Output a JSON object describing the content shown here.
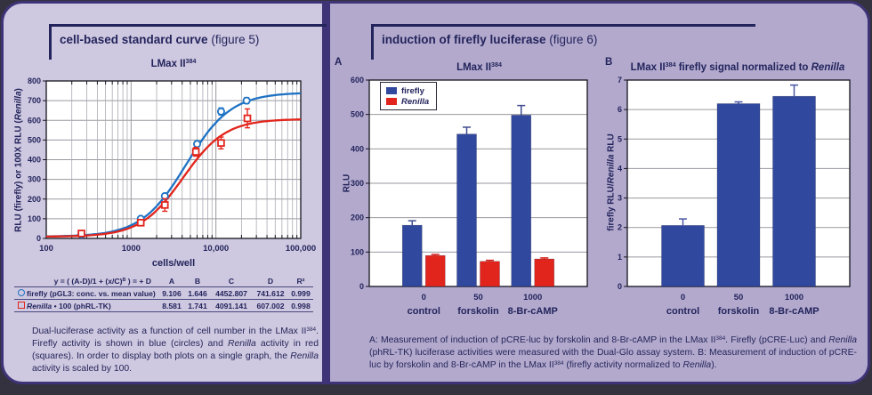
{
  "page": {
    "left_heading": {
      "title": "cell-based standard curve",
      "figure": "(figure 5)"
    },
    "right_heading": {
      "title": "induction of firefly luciferase",
      "figure": "(figure 6)"
    },
    "left_caption": "Dual-luciferase activity as a function of cell number in the LMax II^384^. Firefly activity is shown in blue (circles) and *Renilla* activity in red (squares). In order to display both plots on a single graph, the *Renilla* activity is scaled by 100.",
    "right_caption": "A: Measurement of induction of pCRE-luc by forskolin and 8-Br-cAMP in the LMax II^384^. Firefly (pCRE-Luc) and *Renilla* (phRL-TK) luciferase activities were measured with the Dual-Glo assay system. B: Measurement of induction of pCRE-luc by forskolin and 8-Br-cAMP in the LMax II^384^ (firefly activity normalized to *Renilla*).",
    "colors": {
      "left_panel_bg": "#cec8e0",
      "right_panel_bg": "#b2a9cd",
      "frame_indigo": "#3e3377",
      "text_navy": "#23245c",
      "firefly_line_blue": "#1e72c4",
      "firefly_bar_blue": "#30489e",
      "renilla_red": "#e2251c"
    }
  },
  "chart_data": [
    {
      "id": "standard-curve",
      "type": "scatter",
      "title": "LMax II^384^",
      "xlabel": "cells/well",
      "ylabel": "RLU (firefly) or 100X RLU (*Renilla*)",
      "x_scale": "log",
      "xlim": [
        100,
        100000
      ],
      "ylim": [
        0,
        800
      ],
      "y_tick_step": 100,
      "x_tick_values": [
        100,
        1000,
        10000,
        100000
      ],
      "x_tick_labels": [
        "100",
        "1000",
        "10,000",
        "100,000"
      ],
      "grid": true,
      "fit_formula": "y = ( (A-D)/1 + (x/C)^B^ ) = + D",
      "fit_table_headers": [
        "A",
        "B",
        "C",
        "D",
        "R²"
      ],
      "series": [
        {
          "name": "firefly (pGL3: conc. vs. mean value)",
          "marker": "circle",
          "color": "#1e72c4",
          "x": [
            260,
            1300,
            2500,
            6000,
            11500,
            23000
          ],
          "y": [
            20,
            100,
            215,
            480,
            645,
            700
          ],
          "yerr": [
            5,
            8,
            10,
            14,
            18,
            15
          ],
          "fit": {
            "A": "9.106",
            "B": "1.646",
            "C": "4452.807",
            "D": "741.612",
            "R2": "0.999"
          }
        },
        {
          "name": "*Renilla* • 100 (phRL-TK)",
          "marker": "square",
          "color": "#e2251c",
          "x": [
            260,
            1300,
            2500,
            5800,
            11500,
            23500
          ],
          "y": [
            25,
            80,
            170,
            440,
            485,
            610
          ],
          "yerr": [
            5,
            15,
            32,
            22,
            30,
            48
          ],
          "fit": {
            "A": "8.581",
            "B": "1.741",
            "C": "4091.141",
            "D": "607.002",
            "R2": "0.998"
          }
        }
      ]
    },
    {
      "id": "induction-rlu",
      "panel_label": "A",
      "type": "bar",
      "title": "LMax II^384^",
      "ylabel": "RLU",
      "ylim": [
        0,
        600
      ],
      "y_tick_step": 100,
      "grid": true,
      "legend_position": "top-left",
      "categories": [
        {
          "dose": "0",
          "label": "control"
        },
        {
          "dose": "50",
          "label": "forskolin"
        },
        {
          "dose": "1000",
          "label": "8-Br-cAMP"
        }
      ],
      "series": [
        {
          "name": "firefly",
          "color": "#30489e",
          "error_color": "#3f4c8f",
          "values": [
            178,
            443,
            498
          ],
          "errors": [
            13,
            20,
            28
          ]
        },
        {
          "name": "*Renilla*",
          "color": "#e2251c",
          "error_color": "#d81f18",
          "values": [
            90,
            73,
            80
          ],
          "errors": [
            3,
            3,
            3
          ]
        }
      ]
    },
    {
      "id": "induction-normalized",
      "panel_label": "B",
      "type": "bar",
      "title": "LMax II^384^ firefly signal normalized to *Renilla*",
      "ylabel": "firefly RLU/*Renilla* RLU",
      "ylim": [
        0,
        7
      ],
      "y_tick_step": 1,
      "grid": true,
      "categories": [
        {
          "dose": "0",
          "label": "control"
        },
        {
          "dose": "50",
          "label": "forskolin"
        },
        {
          "dose": "1000",
          "label": "8-Br-cAMP"
        }
      ],
      "series": [
        {
          "name": "firefly/Renilla ratio",
          "color": "#30489e",
          "error_color": "#4a58a5",
          "values": [
            2.07,
            6.2,
            6.45
          ],
          "errors": [
            0.22,
            0.06,
            0.38
          ]
        }
      ]
    }
  ]
}
